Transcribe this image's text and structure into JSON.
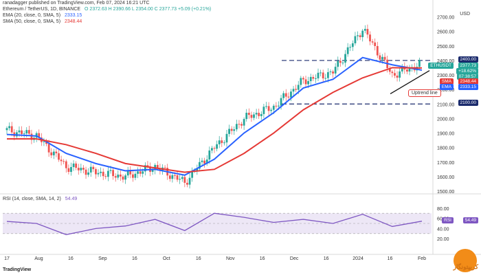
{
  "header": {
    "author": "ranadagger published on TradingView.com, Feb 07, 2024 16:21 UTC",
    "symbol_line": "Ethereum / TetherUS, 1D, BINANCE",
    "ohlc": "O 2372.63  H 2390.66  L 2354.00  C 2377.73  +5.09 (+0.21%)"
  },
  "legend": {
    "ema": {
      "label": "EMA (20, close, 0, SMA, 5)",
      "value": "2333.15",
      "color": "#2962ff"
    },
    "sma": {
      "label": "SMA (50, close, 0, SMA, 5)",
      "value": "2348.44",
      "color": "#e53935"
    }
  },
  "rsi_legend": {
    "label": "RSI (14, close, SMA, 14, 2)",
    "value": "54.49",
    "color": "#7e57c2"
  },
  "currency": "USD",
  "price_labels": [
    "2700.00",
    "2600.00",
    "2500.00",
    "2400.00",
    "2300.00",
    "2200.00",
    "2100.00",
    "2000.00",
    "1900.00",
    "1800.00",
    "1700.00",
    "1600.00",
    "1500.00"
  ],
  "rsi_labels": [
    "80.00",
    "60.00",
    "40.00",
    "20.00"
  ],
  "x_labels": [
    "17",
    "Aug",
    "16",
    "Sep",
    "16",
    "Oct",
    "16",
    "Nov",
    "16",
    "Dec",
    "16",
    "2024",
    "16",
    "Feb"
  ],
  "tags": {
    "level_2400": "2400.00",
    "ethusdt": "ETHUSDT",
    "last": "2377.73",
    "change": "+18.62%",
    "countdown": "07:38:57",
    "sma": "SMA",
    "sma_val": "2348.44",
    "ema": "EMA",
    "ema_val": "2333.15",
    "level_2100": "2100.00",
    "rsi": "RSI",
    "rsi_val": "54.49"
  },
  "annotation": "Uptrend line",
  "footer": {
    "brand": "TradingView",
    "watermark": "کریپتونگار"
  },
  "colors": {
    "up": "#26a69a",
    "down": "#ef5350",
    "ema": "#2962ff",
    "sma": "#e53935",
    "rsi": "#7e57c2",
    "level": "#1a2a6c"
  },
  "chart_data": {
    "type": "line",
    "title": "Ethereum / TetherUS, 1D, BINANCE",
    "x": [
      "Jul 17",
      "Aug 1",
      "Aug 16",
      "Sep 1",
      "Sep 16",
      "Oct 1",
      "Oct 16",
      "Nov 1",
      "Nov 16",
      "Dec 1",
      "Dec 16",
      "Jan 1",
      "Jan 16",
      "Feb 1",
      "Feb 7"
    ],
    "series": [
      {
        "name": "Ethereum / TetherUS",
        "values": [
          1920,
          1880,
          1670,
          1630,
          1600,
          1670,
          1560,
          1800,
          2000,
          2080,
          2260,
          2320,
          2620,
          2300,
          2378
        ]
      },
      {
        "name": "EMA (20, close, 0, SMA, 5)",
        "values": [
          1890,
          1880,
          1760,
          1690,
          1640,
          1650,
          1610,
          1720,
          1900,
          2040,
          2210,
          2270,
          2420,
          2370,
          2333
        ]
      },
      {
        "name": "SMA (50, close, 0, SMA, 5)",
        "values": [
          1860,
          1860,
          1820,
          1760,
          1690,
          1660,
          1630,
          1650,
          1760,
          1900,
          2060,
          2180,
          2280,
          2350,
          2348
        ]
      }
    ],
    "levels": [
      2400,
      2100
    ],
    "rsi": [
      54,
      50,
      28,
      40,
      45,
      58,
      36,
      70,
      62,
      52,
      58,
      50,
      68,
      44,
      54.49
    ],
    "ylim": [
      1500,
      2750
    ],
    "rsi_ylim": [
      0,
      100
    ],
    "grid": false,
    "legend": "top-left"
  }
}
